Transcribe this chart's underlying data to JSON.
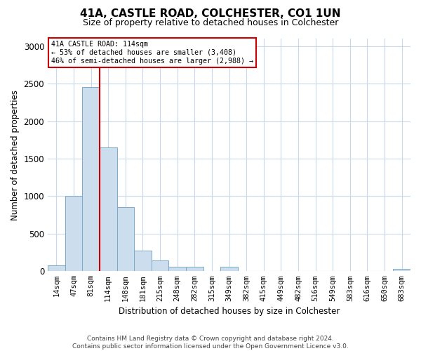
{
  "title": "41A, CASTLE ROAD, COLCHESTER, CO1 1UN",
  "subtitle": "Size of property relative to detached houses in Colchester",
  "xlabel": "Distribution of detached houses by size in Colchester",
  "ylabel": "Number of detached properties",
  "categories": [
    "14sqm",
    "47sqm",
    "81sqm",
    "114sqm",
    "148sqm",
    "181sqm",
    "215sqm",
    "248sqm",
    "282sqm",
    "315sqm",
    "349sqm",
    "382sqm",
    "415sqm",
    "449sqm",
    "482sqm",
    "516sqm",
    "549sqm",
    "583sqm",
    "616sqm",
    "650sqm",
    "683sqm"
  ],
  "values": [
    80,
    1000,
    2450,
    1650,
    850,
    270,
    140,
    60,
    60,
    0,
    60,
    0,
    0,
    0,
    0,
    0,
    0,
    0,
    0,
    0,
    30
  ],
  "bar_color": "#ccdded",
  "bar_edgecolor": "#7aaac8",
  "vline_x_index": 2,
  "vline_color": "#cc0000",
  "annotation_line1": "41A CASTLE ROAD: 114sqm",
  "annotation_line2": "← 53% of detached houses are smaller (3,408)",
  "annotation_line3": "46% of semi-detached houses are larger (2,988) →",
  "annotation_box_edgecolor": "#cc0000",
  "annotation_box_facecolor": "#ffffff",
  "ylim": [
    0,
    3100
  ],
  "yticks": [
    0,
    500,
    1000,
    1500,
    2000,
    2500,
    3000
  ],
  "footer_line1": "Contains HM Land Registry data © Crown copyright and database right 2024.",
  "footer_line2": "Contains public sector information licensed under the Open Government Licence v3.0.",
  "background_color": "#ffffff",
  "grid_color": "#c8d8e8"
}
